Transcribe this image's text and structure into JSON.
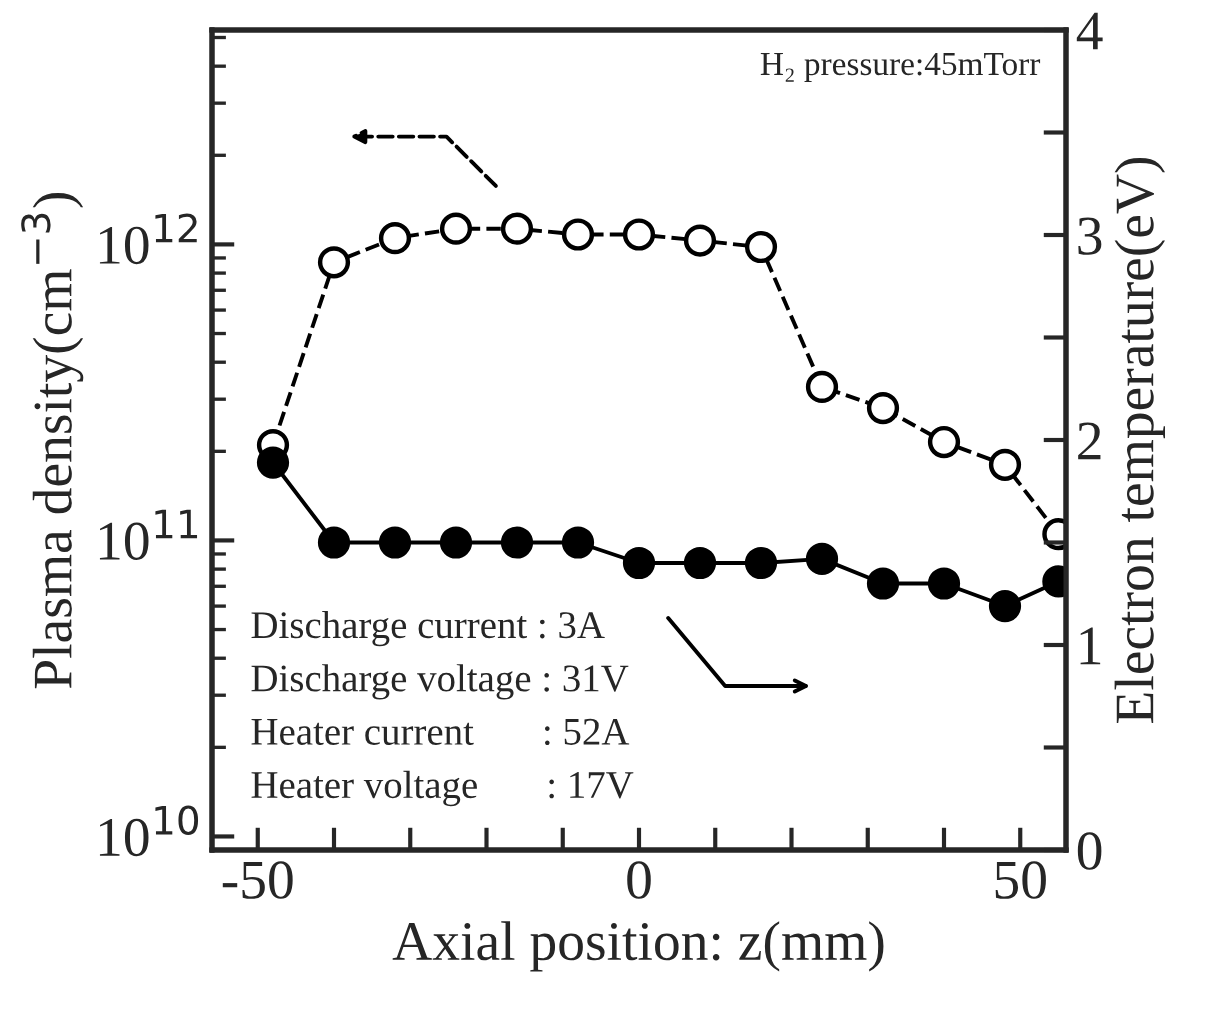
{
  "chart_data": {
    "type": "line",
    "xlabel": "Axial position: z(mm)",
    "ylabel": "Plasma density(cm$^{−3}$)",
    "y2label": "Electron temperature(eV)",
    "x": [
      -48,
      -40,
      -32,
      -24,
      -16,
      -8,
      0,
      8,
      16,
      24,
      32,
      40,
      48,
      55
    ],
    "series": [
      {
        "color": "#000000",
        "marker": "open circle",
        "line_style": "dashed",
        "values": [
          210000000000.0,
          870000000000.0,
          1050000000000.0,
          1130000000000.0,
          1130000000000.0,
          1080000000000.0,
          1080000000000.0,
          1030000000000.0,
          980000000000.0,
          330000000000.0,
          280000000000.0,
          215000000000.0,
          180000000000.0,
          105000000000.0
        ]
      },
      {
        "color": "#000000",
        "marker": "circle",
        "line_style": "solid",
        "axis": "y2",
        "values": [
          1.89,
          1.5,
          1.5,
          1.5,
          1.5,
          1.5,
          1.4,
          1.4,
          1.4,
          1.42,
          1.3,
          1.3,
          1.19,
          1.31
        ]
      }
    ],
    "log": "y",
    "xlim": [
      -56,
      56
    ],
    "ylim": [
      9000000000.0,
      5300000000000.0
    ],
    "y2lim": [
      0,
      4
    ],
    "xticks": [
      {
        "value": -50,
        "label": "-50"
      },
      {
        "value": -40,
        "label": null
      },
      {
        "value": -30,
        "label": null
      },
      {
        "value": -20,
        "label": null
      },
      {
        "value": -10,
        "label": null
      },
      0,
      {
        "value": 10,
        "label": null
      },
      {
        "value": 20,
        "label": null
      },
      {
        "value": 30,
        "label": null
      },
      {
        "value": 40,
        "label": null
      },
      50
    ],
    "yticks": [
      {
        "value": 10000000000.0,
        "label": "10$^{10}$"
      },
      {
        "value": 100000000000.0,
        "label": "10$^{11}$"
      },
      {
        "value": 1000000000000.0,
        "label": "10$^{12}$"
      }
    ],
    "y2ticks": [
      0,
      {
        "value": 0.5,
        "label": null
      },
      1,
      {
        "value": 1.5,
        "label": null
      },
      2,
      {
        "value": 2.5,
        "label": null
      },
      3,
      {
        "value": 3.5,
        "label": null
      },
      4
    ],
    "grid": false,
    "legend": false,
    "annotations": [
      "H₂ pressure:45mTorr",
      "Discharge current : 3A",
      "Discharge voltage : 31V",
      "Heater current       : 52A",
      "Heater voltage       : 17V"
    ]
  }
}
